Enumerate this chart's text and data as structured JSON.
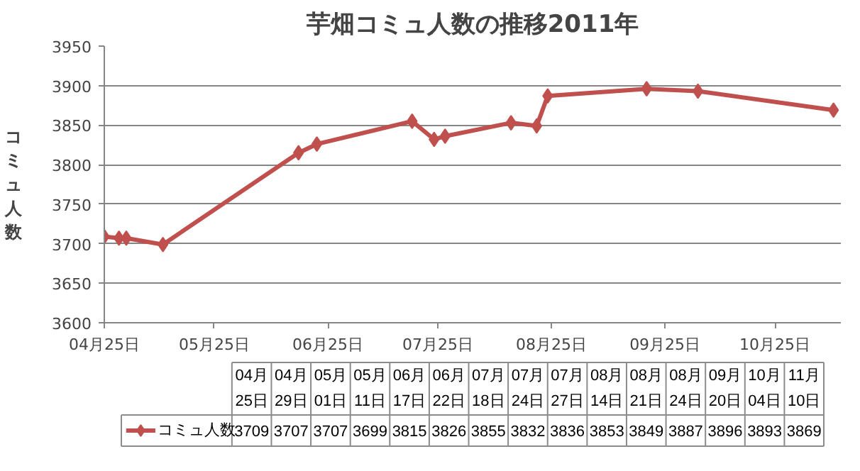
{
  "chart_data": {
    "type": "line",
    "title": "芋畑コミュ人数の推移2011年",
    "ylabel": "コミュ人数",
    "x": [
      "2011-04-25",
      "2011-04-29",
      "2011-05-01",
      "2011-05-11",
      "2011-06-17",
      "2011-06-22",
      "2011-07-18",
      "2011-07-24",
      "2011-07-27",
      "2011-08-14",
      "2011-08-21",
      "2011-08-24",
      "2011-09-20",
      "2011-10-04",
      "2011-11-10"
    ],
    "series": [
      {
        "name": "コミュ人数",
        "color": "#c0504d",
        "values": [
          3709,
          3707,
          3707,
          3699,
          3815,
          3826,
          3855,
          3832,
          3836,
          3853,
          3849,
          3887,
          3896,
          3893,
          3869
        ]
      }
    ],
    "xlim": [
      "2011-04-25",
      "2011-11-12"
    ],
    "xticks": [
      {
        "value": "2011-04-25",
        "label": "04月25日"
      },
      {
        "value": "2011-05-25",
        "label": "05月25日"
      },
      {
        "value": "2011-06-25",
        "label": "06月25日"
      },
      {
        "value": "2011-07-25",
        "label": "07月25日"
      },
      {
        "value": "2011-08-25",
        "label": "08月25日"
      },
      {
        "value": "2011-09-25",
        "label": "09月25日"
      },
      {
        "value": "2011-10-25",
        "label": "10月25日"
      }
    ],
    "ylim": [
      3600,
      3950
    ],
    "yticks": [
      3600,
      3650,
      3700,
      3750,
      3800,
      3850,
      3900,
      3950
    ],
    "annotations": [
      "04月\n25日",
      "04月\n29日",
      "05月\n01日",
      "05月\n11日",
      "06月\n17日",
      "06月\n22日",
      "07月\n18日",
      "07月\n24日",
      "07月\n27日",
      "08月\n14日",
      "08月\n21日",
      "08月\n24日",
      "09月\n20日",
      "10月\n04日",
      "11月\n10日",
      "3709",
      "3707",
      "3707",
      "3699",
      "3815",
      "3826",
      "3855",
      "3832",
      "3836",
      "3853",
      "3849",
      "3887",
      "3896",
      "3893",
      "3869"
    ],
    "grid": "y",
    "marker": "diamond",
    "line_style": "solid",
    "legend": "bottom"
  }
}
